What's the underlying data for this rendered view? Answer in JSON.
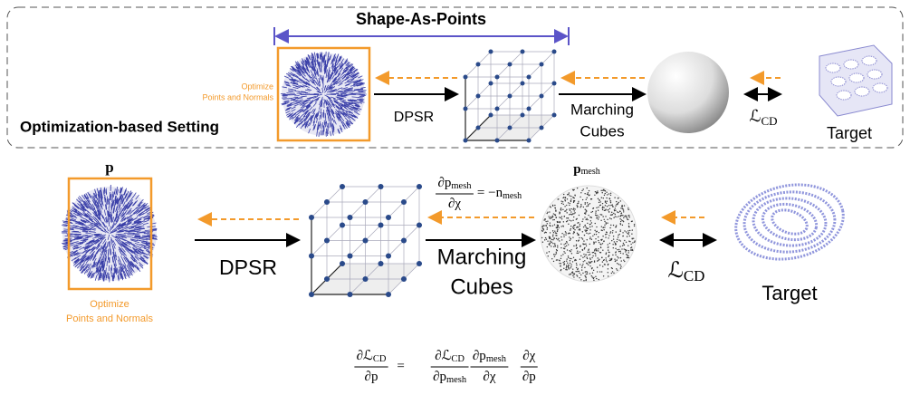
{
  "top": {
    "title": "Shape-As-Points",
    "optimize": [
      "Optimize",
      "Points and Normals"
    ],
    "dpsr": "DPSR",
    "marching": [
      "Marching",
      "Cubes"
    ],
    "loss": {
      "symbol": "ℒ",
      "sub": "CD"
    },
    "target": "Target",
    "setting": "Optimization-based Setting"
  },
  "bottom": {
    "points_label": "p",
    "optimize": [
      "Optimize",
      "Points and Normals"
    ],
    "dpsr": "DPSR",
    "marching": [
      "Marching",
      "Cubes"
    ],
    "mesh_grad": {
      "num": "∂p",
      "num_sub": "mesh",
      "den": "∂χ",
      "rhs": "= −n",
      "rhs_sub": "mesh"
    },
    "mesh_label": {
      "base": "p",
      "sub": "mesh"
    },
    "loss": {
      "symbol": "ℒ",
      "sub": "CD"
    },
    "target": "Target"
  },
  "formula": {
    "lhs": {
      "num": "∂ℒ",
      "num_sub": "CD",
      "den": "∂p"
    },
    "eq": "=",
    "terms": [
      {
        "num": "∂ℒ",
        "num_sub": "CD",
        "den": "∂p",
        "den_sub": "mesh"
      },
      {
        "num": "∂p",
        "num_sub": "mesh",
        "den": "∂χ"
      },
      {
        "num": "∂χ",
        "den": "∂p"
      }
    ]
  }
}
